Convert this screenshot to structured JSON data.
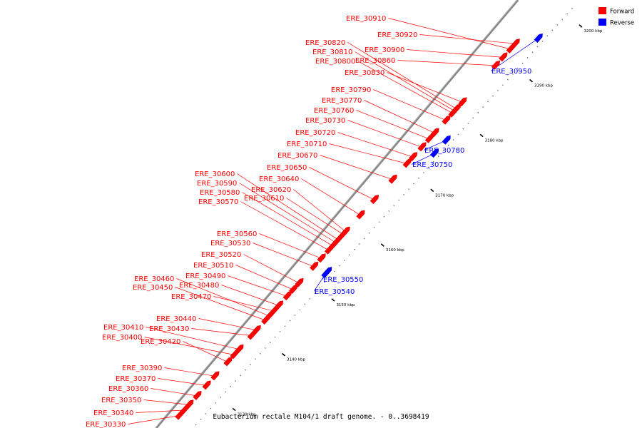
{
  "caption": "Eubacterium rectale M104/1 draft genome. - 0..3698419",
  "legend": [
    {
      "label": "Forward",
      "color": "#ff0000"
    },
    {
      "label": "Reverse",
      "color": "#0000ff"
    }
  ],
  "colors": {
    "forward": "#ff0000",
    "reverse": "#0000ff",
    "backbone": "#888888"
  },
  "scale_ticks": [
    {
      "kbp": 3130,
      "label": "3130 kbp"
    },
    {
      "kbp": 3140,
      "label": "3140 kbp"
    },
    {
      "kbp": 3150,
      "label": "3150 kbp"
    },
    {
      "kbp": 3160,
      "label": "3160 kbp"
    },
    {
      "kbp": 3170,
      "label": "3170 kbp"
    },
    {
      "kbp": 3180,
      "label": "3180 kbp"
    },
    {
      "kbp": 3190,
      "label": "3190 kbp"
    },
    {
      "kbp": 3200,
      "label": "3200 kbp"
    }
  ],
  "genes": [
    {
      "name": "ERE_30330",
      "strand": "forward",
      "kbp": 3124.4
    },
    {
      "name": "ERE_30340",
      "strand": "forward",
      "kbp": 3125.4
    },
    {
      "name": "ERE_30350",
      "strand": "forward",
      "kbp": 3126.4
    },
    {
      "name": "ERE_30360",
      "strand": "forward",
      "kbp": 3128.0
    },
    {
      "name": "ERE_30370",
      "strand": "forward",
      "kbp": 3129.9
    },
    {
      "name": "ERE_30390",
      "strand": "forward",
      "kbp": 3131.6
    },
    {
      "name": "ERE_30400",
      "strand": "forward",
      "kbp": 3135.5
    },
    {
      "name": "ERE_30410",
      "strand": "forward",
      "kbp": 3136.5
    },
    {
      "name": "ERE_30420",
      "strand": "forward",
      "kbp": 3134.2
    },
    {
      "name": "ERE_30430",
      "strand": "forward",
      "kbp": 3139.0
    },
    {
      "name": "ERE_30440",
      "strand": "forward",
      "kbp": 3140.0
    },
    {
      "name": "ERE_30450",
      "strand": "forward",
      "kbp": 3141.8
    },
    {
      "name": "ERE_30460",
      "strand": "forward",
      "kbp": 3142.6
    },
    {
      "name": "ERE_30470",
      "strand": "forward",
      "kbp": 3143.5
    },
    {
      "name": "ERE_30480",
      "strand": "forward",
      "kbp": 3144.5
    },
    {
      "name": "ERE_30490",
      "strand": "forward",
      "kbp": 3146.2
    },
    {
      "name": "ERE_30510",
      "strand": "forward",
      "kbp": 3147.4
    },
    {
      "name": "ERE_30520",
      "strand": "forward",
      "kbp": 3148.6
    },
    {
      "name": "ERE_30530",
      "strand": "forward",
      "kbp": 3151.6
    },
    {
      "name": "ERE_30540",
      "strand": "reverse",
      "kbp": 3151.9
    },
    {
      "name": "ERE_30550",
      "strand": "reverse",
      "kbp": 3152.3
    },
    {
      "name": "ERE_30560",
      "strand": "forward",
      "kbp": 3153.1
    },
    {
      "name": "ERE_30570",
      "strand": "forward",
      "kbp": 3154.6
    },
    {
      "name": "ERE_30580",
      "strand": "forward",
      "kbp": 3155.4
    },
    {
      "name": "ERE_30590",
      "strand": "forward",
      "kbp": 3156.0
    },
    {
      "name": "ERE_30600",
      "strand": "forward",
      "kbp": 3156.5
    },
    {
      "name": "ERE_30610",
      "strand": "forward",
      "kbp": 3157.5
    },
    {
      "name": "ERE_30620",
      "strand": "forward",
      "kbp": 3158.0
    },
    {
      "name": "ERE_30640",
      "strand": "forward",
      "kbp": 3161.0
    },
    {
      "name": "ERE_30650",
      "strand": "forward",
      "kbp": 3163.8
    },
    {
      "name": "ERE_30670",
      "strand": "forward",
      "kbp": 3167.5
    },
    {
      "name": "ERE_30710",
      "strand": "forward",
      "kbp": 3170.4
    },
    {
      "name": "ERE_30720",
      "strand": "forward",
      "kbp": 3171.6
    },
    {
      "name": "ERE_30730",
      "strand": "forward",
      "kbp": 3173.4
    },
    {
      "name": "ERE_30750",
      "strand": "reverse",
      "kbp": 3173.9
    },
    {
      "name": "ERE_30760",
      "strand": "forward",
      "kbp": 3174.9
    },
    {
      "name": "ERE_30770",
      "strand": "forward",
      "kbp": 3176.0
    },
    {
      "name": "ERE_30780",
      "strand": "reverse",
      "kbp": 3176.3
    },
    {
      "name": "ERE_30790",
      "strand": "forward",
      "kbp": 3178.3
    },
    {
      "name": "ERE_30800",
      "strand": "forward",
      "kbp": 3179.6
    },
    {
      "name": "ERE_30810",
      "strand": "forward",
      "kbp": 3180.0
    },
    {
      "name": "ERE_30820",
      "strand": "forward",
      "kbp": 3180.4
    },
    {
      "name": "ERE_30830",
      "strand": "forward",
      "kbp": 3181.6
    },
    {
      "name": "ERE_30860",
      "strand": "forward",
      "kbp": 3188.3
    },
    {
      "name": "ERE_30900",
      "strand": "forward",
      "kbp": 3189.8
    },
    {
      "name": "ERE_30910",
      "strand": "forward",
      "kbp": 3191.3
    },
    {
      "name": "ERE_30920",
      "strand": "forward",
      "kbp": 3192.3
    },
    {
      "name": "ERE_30950",
      "strand": "reverse",
      "kbp": 3194.9
    }
  ]
}
